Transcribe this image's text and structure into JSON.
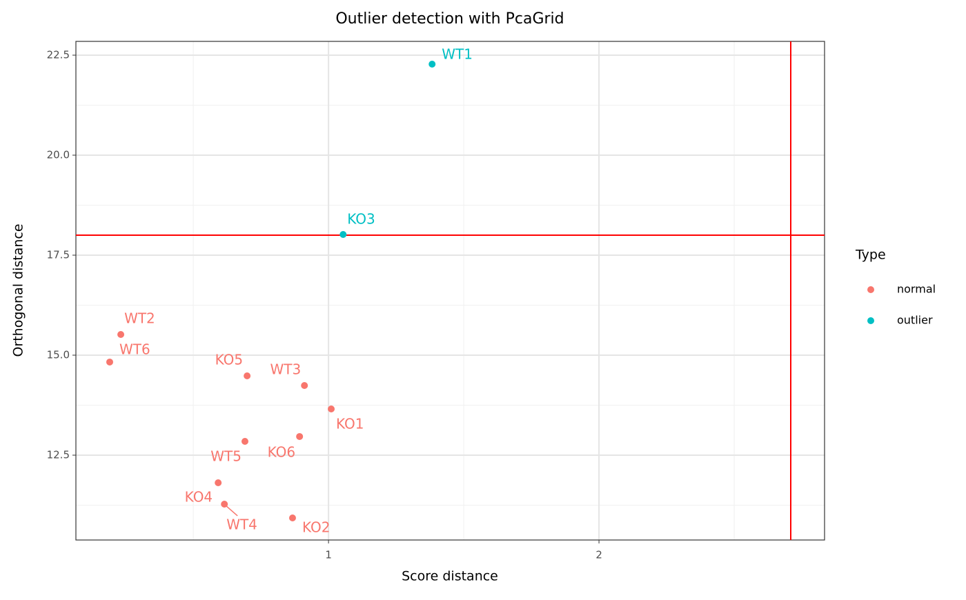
{
  "chart_data": {
    "type": "scatter",
    "title": "Outlier detection with PcaGrid",
    "x_label": "Score distance",
    "y_label": "Orthogonal distance",
    "legend_title": "Type",
    "legend_position": "right",
    "grid": true,
    "xlim": [
      0.066,
      2.834
    ],
    "ylim": [
      10.379,
      22.845
    ],
    "xticks": [
      1,
      2
    ],
    "yticks": [
      12.5,
      {
        "value": 15,
        "label": "15.0"
      },
      17.5,
      {
        "value": 20,
        "label": "20.0"
      },
      22.5
    ],
    "x_minor_grid": [
      0.5,
      1.5,
      2.5
    ],
    "y_minor_grid": [
      11.25,
      13.75,
      16.25,
      18.75,
      21.25
    ],
    "hlines": [
      18.0
    ],
    "vlines": [
      2.709
    ],
    "reference_line_color": "#ff0000",
    "series": [
      {
        "name": "normal",
        "color": "#F8766D",
        "labels": [
          "WT2",
          "WT6",
          "KO5",
          "WT3",
          "KO1",
          "KO6",
          "WT5",
          "KO4",
          "WT4",
          "KO2"
        ],
        "x": [
          0.232,
          0.191,
          0.699,
          0.911,
          1.01,
          0.893,
          0.691,
          0.592,
          0.615,
          0.867
        ],
        "y": [
          15.517,
          14.828,
          14.483,
          14.241,
          13.655,
          12.966,
          12.845,
          11.81,
          11.276,
          10.931
        ]
      },
      {
        "name": "outlier",
        "color": "#00BFC4",
        "labels": [
          "WT1",
          "KO3"
        ],
        "x": [
          1.383,
          1.054
        ],
        "y": [
          22.276,
          18.017
        ]
      }
    ]
  }
}
